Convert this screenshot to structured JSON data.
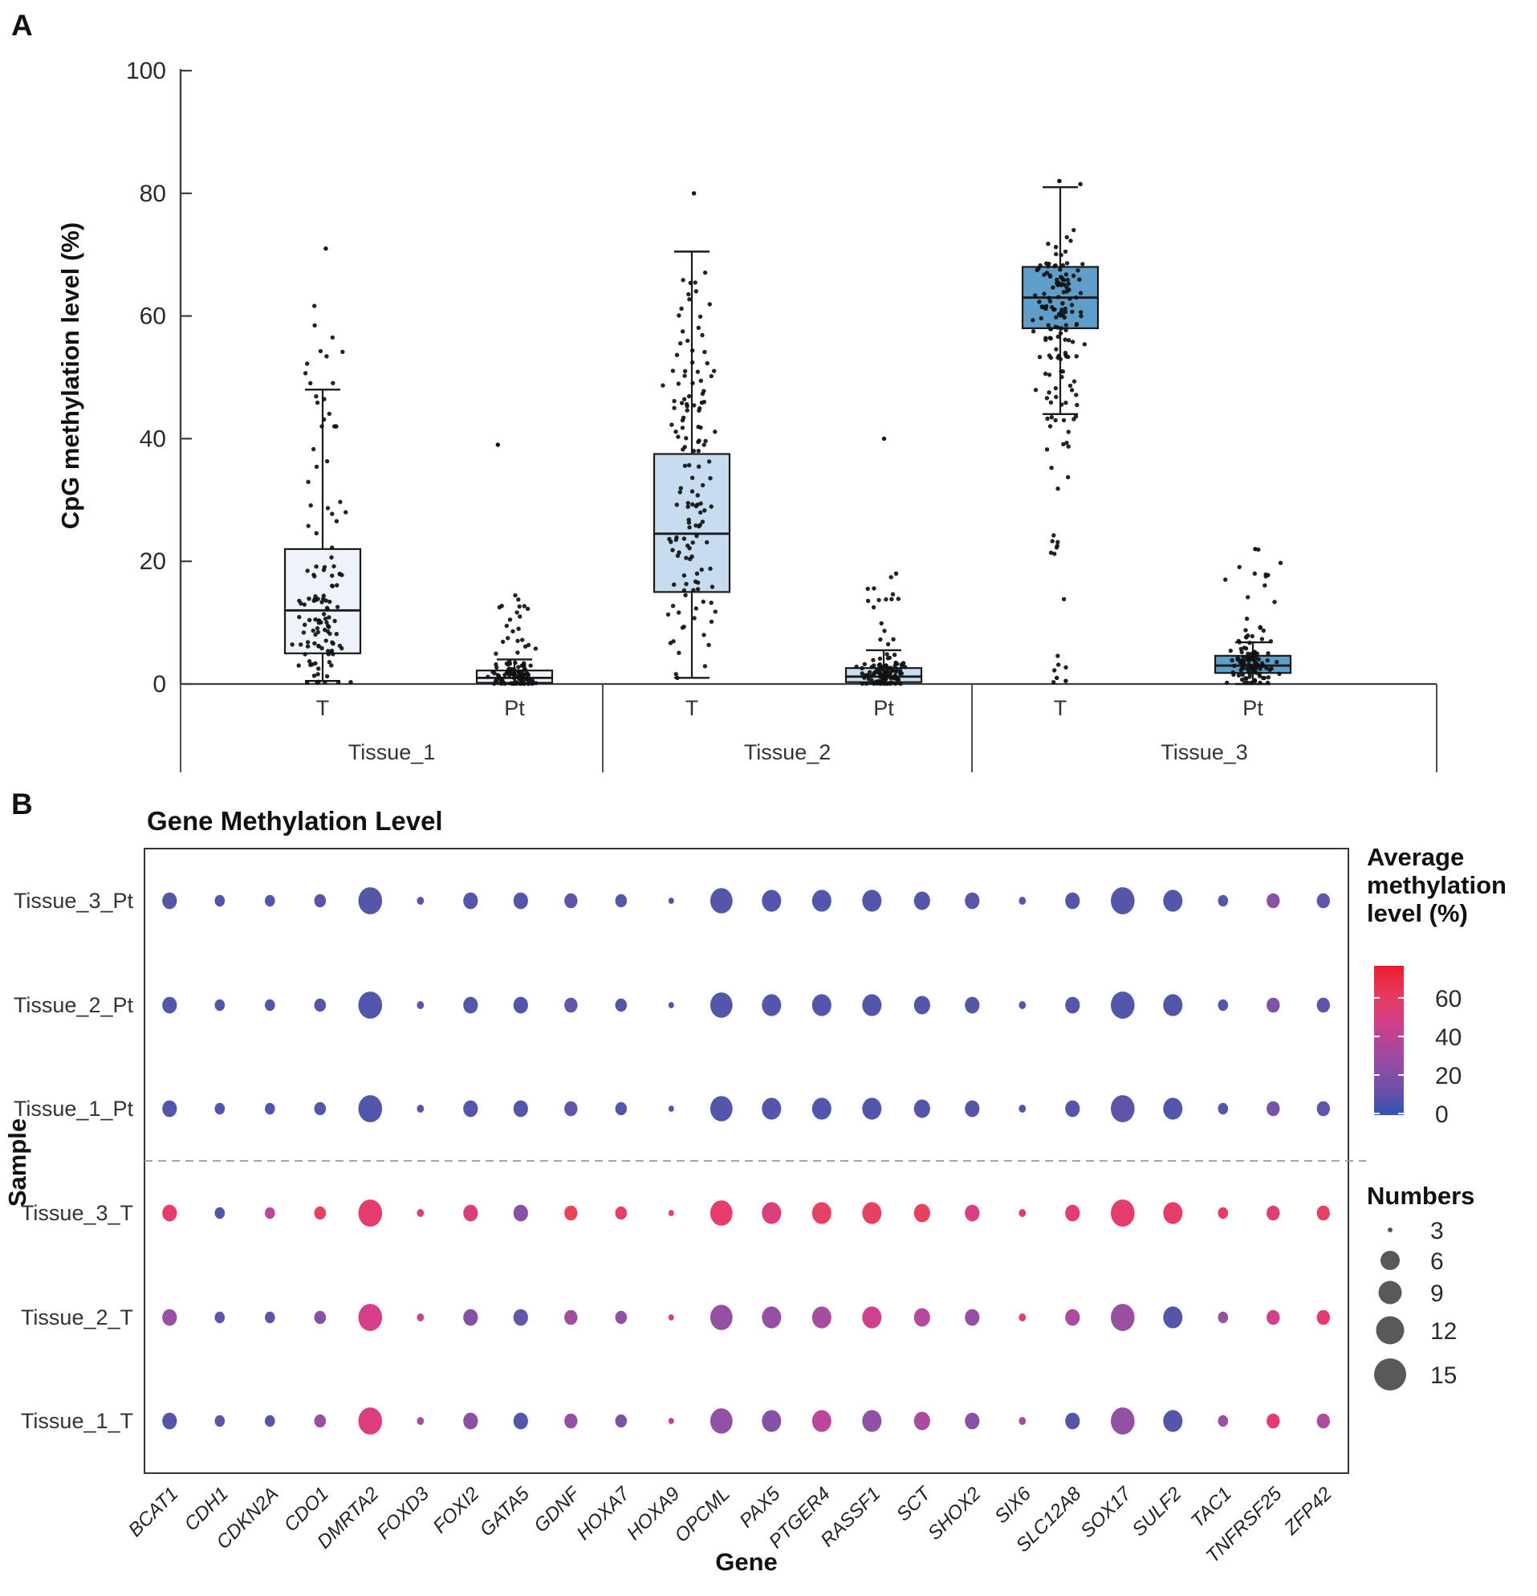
{
  "figure": {
    "panel_a_label": "A",
    "panel_b_label": "B"
  },
  "chart_data": [
    {
      "type": "box",
      "title": "",
      "ylabel": "CpG methylation level (%)",
      "ylim": [
        0,
        100
      ],
      "yticks": [
        0,
        20,
        40,
        60,
        80,
        100
      ],
      "group_labels": [
        "Tissue_1",
        "Tissue_2",
        "Tissue_3"
      ],
      "sub_labels": [
        "T",
        "Pt"
      ],
      "point_color": "#111111",
      "boxes": [
        {
          "tissue": "Tissue_1",
          "sample": "T",
          "q1": 5,
          "median": 12,
          "q3": 22,
          "whisker_low": 0.5,
          "whisker_high": 48,
          "fill": "#eef3fa",
          "n_points": 125,
          "outliers": [
            71
          ],
          "seed": 11,
          "point_clusters": [
            [
              0.62,
              11,
              7,
              0.3,
              28
            ],
            [
              0.16,
              50,
              5,
              42,
              63
            ],
            [
              0.12,
              31,
              4,
              24,
              40
            ],
            [
              0.1,
              3,
              2,
              0.2,
              8
            ]
          ]
        },
        {
          "tissue": "Tissue_1",
          "sample": "Pt",
          "q1": 0.2,
          "median": 1,
          "q3": 2.2,
          "whisker_low": 0,
          "whisker_high": 4,
          "fill": "#eef3fa",
          "n_points": 115,
          "outliers": [
            39
          ],
          "seed": 22,
          "point_clusters": [
            [
              0.78,
              1.2,
              1.1,
              0.05,
              4.5
            ],
            [
              0.16,
              7,
              3.5,
              3,
              15
            ],
            [
              0.06,
              12,
              2,
              9,
              16
            ]
          ]
        },
        {
          "tissue": "Tissue_2",
          "sample": "T",
          "q1": 15,
          "median": 24.5,
          "q3": 37.5,
          "whisker_low": 1,
          "whisker_high": 70.5,
          "fill": "#c7dcee",
          "n_points": 140,
          "outliers": [
            80
          ],
          "seed": 33,
          "point_clusters": [
            [
              0.55,
              26,
              9,
              3,
              45
            ],
            [
              0.2,
              48,
              6,
              38,
              62
            ],
            [
              0.15,
              9,
              5,
              1,
              18
            ],
            [
              0.1,
              60,
              4,
              55,
              68
            ]
          ]
        },
        {
          "tissue": "Tissue_2",
          "sample": "Pt",
          "q1": 0.3,
          "median": 1.2,
          "q3": 2.6,
          "whisker_low": 0,
          "whisker_high": 5.5,
          "fill": "#c7dcee",
          "n_points": 115,
          "outliers": [
            40,
            18
          ],
          "seed": 44,
          "point_clusters": [
            [
              0.8,
              1.4,
              1.3,
              0.05,
              5.5
            ],
            [
              0.17,
              8,
              4,
              3,
              18
            ],
            [
              0.03,
              15,
              2,
              12,
              18
            ]
          ]
        },
        {
          "tissue": "Tissue_3",
          "sample": "T",
          "q1": 58,
          "median": 63,
          "q3": 68,
          "whisker_low": 44,
          "whisker_high": 81,
          "fill": "#5f9ec9",
          "n_points": 160,
          "outliers": [
            81.5,
            82,
            0.5,
            1
          ],
          "seed": 55,
          "point_clusters": [
            [
              0.62,
              63,
              4.5,
              53,
              74
            ],
            [
              0.2,
              50,
              4,
              43,
              58
            ],
            [
              0.1,
              40,
              6,
              28,
              50
            ],
            [
              0.05,
              25,
              6,
              13,
              35
            ],
            [
              0.03,
              5,
              4,
              0.3,
              12
            ]
          ]
        },
        {
          "tissue": "Tissue_3",
          "sample": "Pt",
          "q1": 1.8,
          "median": 3,
          "q3": 4.6,
          "whisker_low": 0,
          "whisker_high": 6.8,
          "fill": "#5f9ec9",
          "n_points": 115,
          "outliers": [
            22
          ],
          "seed": 66,
          "point_clusters": [
            [
              0.75,
              3,
              1.6,
              0.2,
              7
            ],
            [
              0.2,
              9,
              4,
              5,
              18
            ],
            [
              0.05,
              19,
              2,
              16,
              22
            ]
          ]
        }
      ]
    },
    {
      "type": "bubble",
      "title": "Gene Methylation Level",
      "xlabel": "Gene",
      "ylabel": "Sample",
      "genes": [
        "BCAT1",
        "CDH1",
        "CDKN2A",
        "CDO1",
        "DMRTA2",
        "FOXD3",
        "FOXI2",
        "GATA5",
        "GDNF",
        "HOXA7",
        "HOXA9",
        "OPCML",
        "PAX5",
        "PTGER4",
        "RASSF1",
        "SCT",
        "SHOX2",
        "SIX6",
        "SLC12A8",
        "SOX17",
        "SULF2",
        "TAC1",
        "TNFRSF25",
        "ZFP42"
      ],
      "gene_numbers": [
        9,
        6,
        6,
        7,
        15,
        4,
        9,
        9,
        8,
        7,
        3,
        14,
        12,
        12,
        12,
        10,
        9,
        4,
        9,
        15,
        12,
        6,
        8,
        8
      ],
      "rows": [
        {
          "sample": "Tissue_3_Pt",
          "values": [
            6,
            3,
            3,
            8,
            5,
            8,
            4,
            4,
            10,
            6,
            3,
            5,
            4,
            4,
            4,
            6,
            7,
            4,
            5,
            6,
            4,
            4,
            24,
            12
          ]
        },
        {
          "sample": "Tissue_2_Pt",
          "values": [
            4,
            3,
            3,
            5,
            3,
            8,
            4,
            3,
            12,
            5,
            3,
            4,
            4,
            4,
            3,
            5,
            6,
            3,
            5,
            4,
            3,
            4,
            20,
            10
          ]
        },
        {
          "sample": "Tissue_1_Pt",
          "values": [
            3,
            3,
            3,
            5,
            3,
            7,
            4,
            3,
            11,
            5,
            3,
            4,
            4,
            4,
            3,
            5,
            6,
            3,
            5,
            10,
            3,
            4,
            18,
            9
          ]
        },
        {
          "sample": "Tissue_3_T",
          "values": [
            57,
            4,
            38,
            62,
            57,
            55,
            52,
            22,
            64,
            58,
            57,
            57,
            52,
            60,
            60,
            62,
            50,
            56,
            55,
            57,
            58,
            58,
            53,
            60
          ]
        },
        {
          "sample": "Tissue_2_T",
          "values": [
            28,
            10,
            8,
            22,
            48,
            42,
            22,
            12,
            30,
            25,
            45,
            27,
            27,
            32,
            45,
            37,
            26,
            55,
            34,
            28,
            5,
            28,
            47,
            56
          ]
        },
        {
          "sample": "Tissue_1_T",
          "values": [
            6,
            10,
            7,
            28,
            52,
            30,
            24,
            5,
            26,
            20,
            43,
            26,
            22,
            38,
            25,
            33,
            23,
            30,
            6,
            26,
            5,
            28,
            55,
            34
          ]
        }
      ],
      "color_legend": {
        "title_lines": [
          "Average",
          "methylation",
          "level (%)"
        ],
        "ticks": [
          60,
          40,
          20,
          0
        ]
      },
      "size_legend": {
        "title": "Numbers",
        "entries": [
          3,
          6,
          9,
          12,
          15
        ]
      },
      "value_color_stops": [
        [
          0,
          "#4b57ab"
        ],
        [
          10,
          "#5e55a8"
        ],
        [
          20,
          "#7d53a6"
        ],
        [
          30,
          "#a04fa0"
        ],
        [
          40,
          "#c04597"
        ],
        [
          48,
          "#d43f88"
        ],
        [
          56,
          "#e43b6e"
        ],
        [
          64,
          "#e84457"
        ],
        [
          70,
          "#e75045"
        ]
      ],
      "gradient_bar_stops": [
        [
          0,
          "#ed1b2c"
        ],
        [
          0.2,
          "#e63a5f"
        ],
        [
          0.4,
          "#ce3f8d"
        ],
        [
          0.6,
          "#9f4aa1"
        ],
        [
          0.84,
          "#6a51a8"
        ],
        [
          1,
          "#2f55b2"
        ]
      ]
    }
  ]
}
